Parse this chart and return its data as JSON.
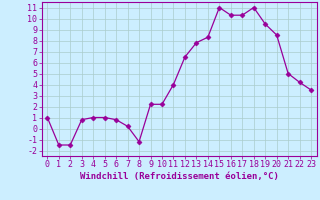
{
  "x_data": [
    0,
    1,
    2,
    3,
    4,
    5,
    6,
    7,
    8,
    9,
    10,
    11,
    12,
    13,
    14,
    15,
    16,
    17,
    18,
    19,
    20,
    21,
    22,
    23
  ],
  "y_data": [
    1.0,
    -1.5,
    -1.5,
    0.8,
    1.0,
    1.0,
    0.8,
    0.2,
    -1.2,
    2.2,
    2.2,
    4.0,
    6.5,
    7.8,
    8.3,
    11.0,
    10.3,
    10.3,
    11.0,
    9.5,
    8.5,
    5.0,
    4.2,
    3.5
  ],
  "line_color": "#990099",
  "marker": "D",
  "marker_size": 2.5,
  "bg_color": "#cceeff",
  "grid_color": "#aacccc",
  "xlim": [
    -0.5,
    23.5
  ],
  "ylim": [
    -2.5,
    11.5
  ],
  "xticks": [
    0,
    1,
    2,
    3,
    4,
    5,
    6,
    7,
    8,
    9,
    10,
    11,
    12,
    13,
    14,
    15,
    16,
    17,
    18,
    19,
    20,
    21,
    22,
    23
  ],
  "yticks": [
    -2,
    -1,
    0,
    1,
    2,
    3,
    4,
    5,
    6,
    7,
    8,
    9,
    10,
    11
  ],
  "tick_color": "#990099",
  "label_color": "#990099",
  "axis_color": "#990099",
  "xlabel": "Windchill (Refroidissement éolien,°C)",
  "font_size": 6,
  "xlabel_fontsize": 6.5
}
